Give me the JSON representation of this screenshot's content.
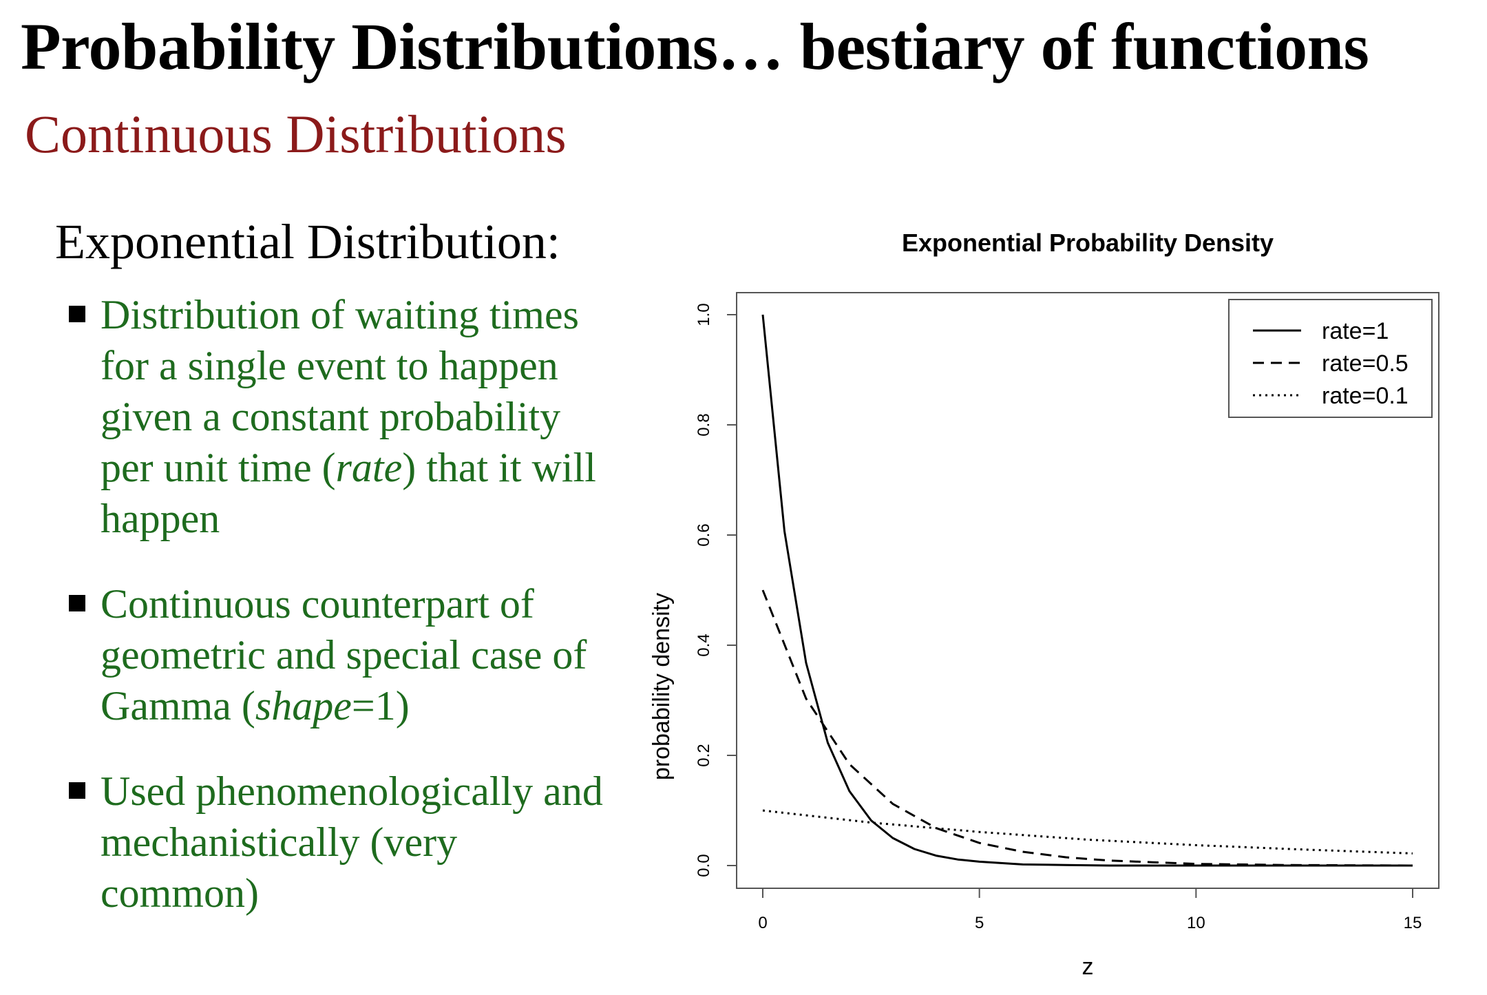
{
  "slide": {
    "title": "Probability Distributions… bestiary of functions",
    "subtitle": "Continuous Distributions",
    "heading": "Exponential Distribution:",
    "bullets": [
      {
        "parts": [
          "Distribution of waiting times for a single event to happen given a constant probability per unit time (",
          "rate",
          ") that it will happen"
        ]
      },
      {
        "parts": [
          "Continuous counterpart of geometric and special case of Gamma (",
          "shape",
          "=1)"
        ]
      },
      {
        "parts": [
          "Used phenomenologically and mechanistically (very common)"
        ]
      }
    ]
  },
  "chart_data": {
    "type": "line",
    "title": "Exponential Probability Density",
    "xlabel": "z",
    "ylabel": "probability density",
    "xlim": [
      0,
      15
    ],
    "ylim": [
      0,
      1
    ],
    "x_ticks": [
      0,
      5,
      10,
      15
    ],
    "y_ticks": [
      0.0,
      0.2,
      0.4,
      0.6,
      0.8,
      1.0
    ],
    "y_tick_labels": [
      "0.0",
      "0.2",
      "0.4",
      "0.6",
      "0.8",
      "1.0"
    ],
    "grid": false,
    "legend_position": "top-right",
    "series": [
      {
        "name": "rate=1",
        "line_style": "solid",
        "x": [
          0,
          0.5,
          1,
          1.5,
          2,
          2.5,
          3,
          3.5,
          4,
          4.5,
          5,
          6,
          7,
          8,
          10,
          12,
          15
        ],
        "y": [
          1.0,
          0.607,
          0.368,
          0.223,
          0.135,
          0.082,
          0.05,
          0.03,
          0.018,
          0.011,
          0.007,
          0.002,
          0.001,
          0.0,
          0.0,
          0.0,
          0.0
        ]
      },
      {
        "name": "rate=0.5",
        "line_style": "dashed",
        "x": [
          0,
          1,
          2,
          3,
          4,
          5,
          6,
          7,
          8,
          9,
          10,
          12,
          15
        ],
        "y": [
          0.5,
          0.303,
          0.184,
          0.112,
          0.068,
          0.041,
          0.025,
          0.015,
          0.009,
          0.006,
          0.003,
          0.001,
          0.0
        ]
      },
      {
        "name": "rate=0.1",
        "line_style": "dotted",
        "x": [
          0,
          2.5,
          5,
          7.5,
          10,
          12.5,
          15
        ],
        "y": [
          0.1,
          0.078,
          0.061,
          0.047,
          0.037,
          0.029,
          0.022
        ]
      }
    ]
  }
}
